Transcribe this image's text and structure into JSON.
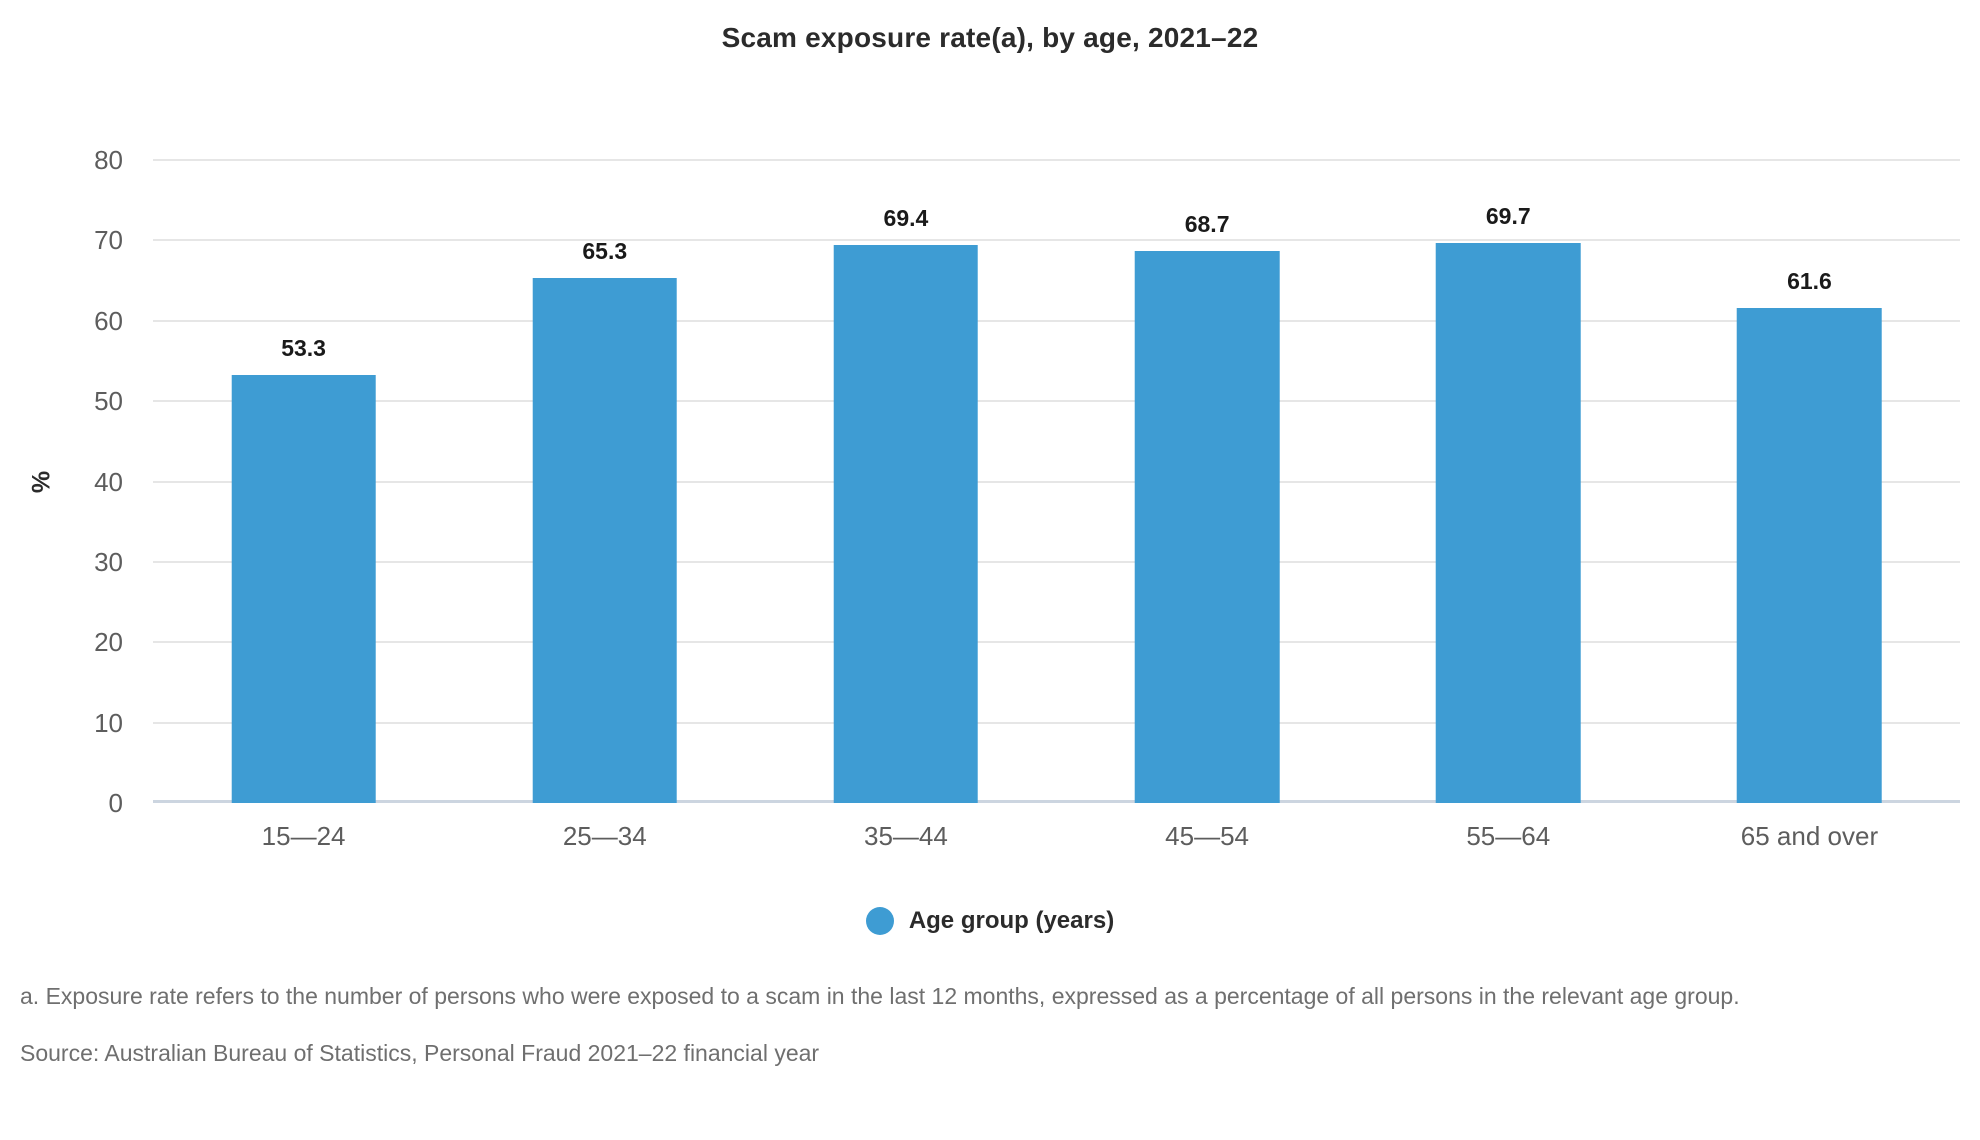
{
  "title": "Scam exposure rate(a), by age, 2021–22",
  "chart_data": {
    "type": "bar",
    "categories": [
      "15—24",
      "25—34",
      "35—44",
      "45—54",
      "55—64",
      "65 and over"
    ],
    "values": [
      53.3,
      65.3,
      69.4,
      68.7,
      69.7,
      61.6
    ],
    "title": "Scam exposure rate(a), by age, 2021–22",
    "xlabel": "Age group (years)",
    "ylabel": "%",
    "ylim": [
      0,
      80
    ],
    "yticks": [
      0,
      10,
      20,
      30,
      40,
      50,
      60,
      70,
      80
    ],
    "grid": true,
    "legend": {
      "label": "Age group (years)",
      "marker_color": "#3e9cd3",
      "position": "bottom-center"
    },
    "bar_color": "#3e9cd3"
  },
  "colors": {
    "bar": "#3e9cd3",
    "gridline": "#e6e6e6",
    "axis_line": "#ccd5e0",
    "tick_label": "#5d5d5d",
    "value_label": "#1a1a1a",
    "title_text": "#2b2b2b",
    "note_text": "#6f6f6f"
  },
  "footnote": "a. Exposure rate refers to the number of persons who were exposed to a scam in the last 12 months, expressed as a percentage of all persons in the relevant age group.",
  "source": "Source: Australian Bureau of Statistics, Personal Fraud 2021–22 financial year"
}
